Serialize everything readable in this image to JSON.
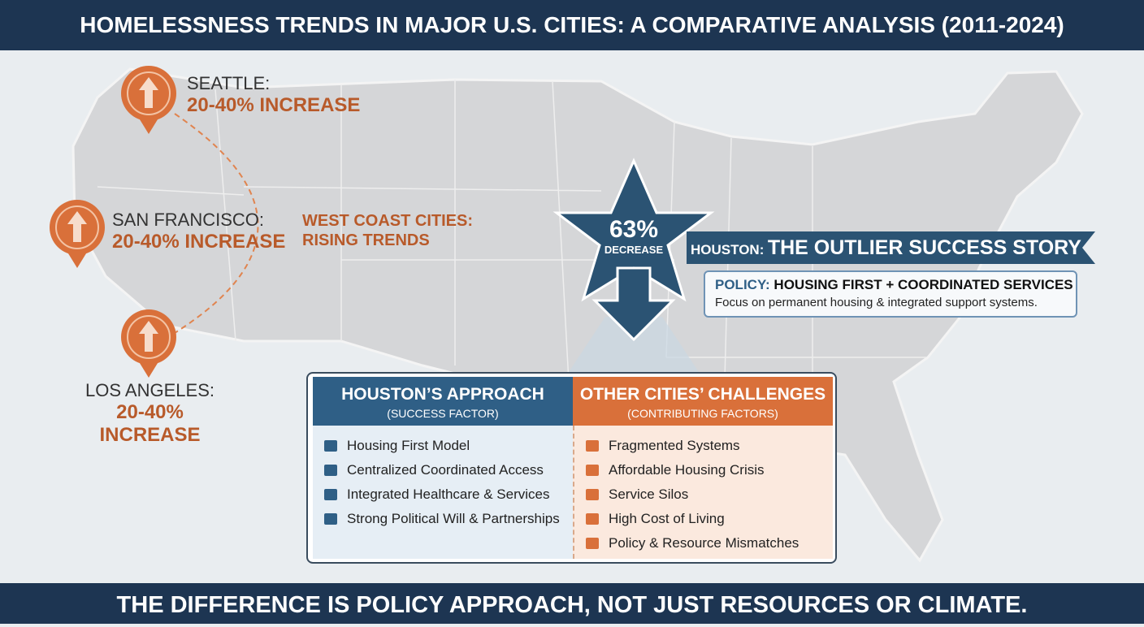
{
  "header": {
    "title": "HOMELESSNESS TRENDS IN MAJOR U.S. CITIES: A COMPARATIVE ANALYSIS (2011-2024)"
  },
  "cities": [
    {
      "name": "SEATTLE:",
      "change": "20-40% INCREASE"
    },
    {
      "name": "SAN FRANCISCO:",
      "change": "20-40% INCREASE"
    },
    {
      "name": "LOS ANGELES:",
      "change": "20-40% INCREASE"
    }
  ],
  "west_coast_label": [
    "WEST COAST CITIES:",
    "RISING TRENDS"
  ],
  "houston_badge": {
    "value": "63%",
    "label": "DECREASE"
  },
  "banner": {
    "prefix": "HOUSTON:",
    "title": "THE OUTLIER SUCCESS STORY"
  },
  "policy": {
    "label": "POLICY:",
    "name": "HOUSING FIRST + COORDINATED SERVICES",
    "description": "Focus on permanent housing & integrated support systems."
  },
  "table": {
    "left": {
      "header": "HOUSTON’S APPROACH",
      "subheader": "(SUCCESS FACTOR)",
      "items": [
        "Housing First Model",
        "Centralized Coordinated Access",
        "Integrated Healthcare & Services",
        "Strong Political Will & Partnerships"
      ]
    },
    "right": {
      "header": "OTHER CITIES’ CHALLENGES",
      "subheader": "(CONTRIBUTING FACTORS)",
      "items": [
        "Fragmented Systems",
        "Affordable Housing Crisis",
        "Service Silos",
        "High Cost of Living",
        "Policy & Resource Mismatches"
      ]
    }
  },
  "footer": {
    "text": "THE DIFFERENCE IS POLICY APPROACH, NOT JUST RESOURCES OR CLIMATE."
  }
}
